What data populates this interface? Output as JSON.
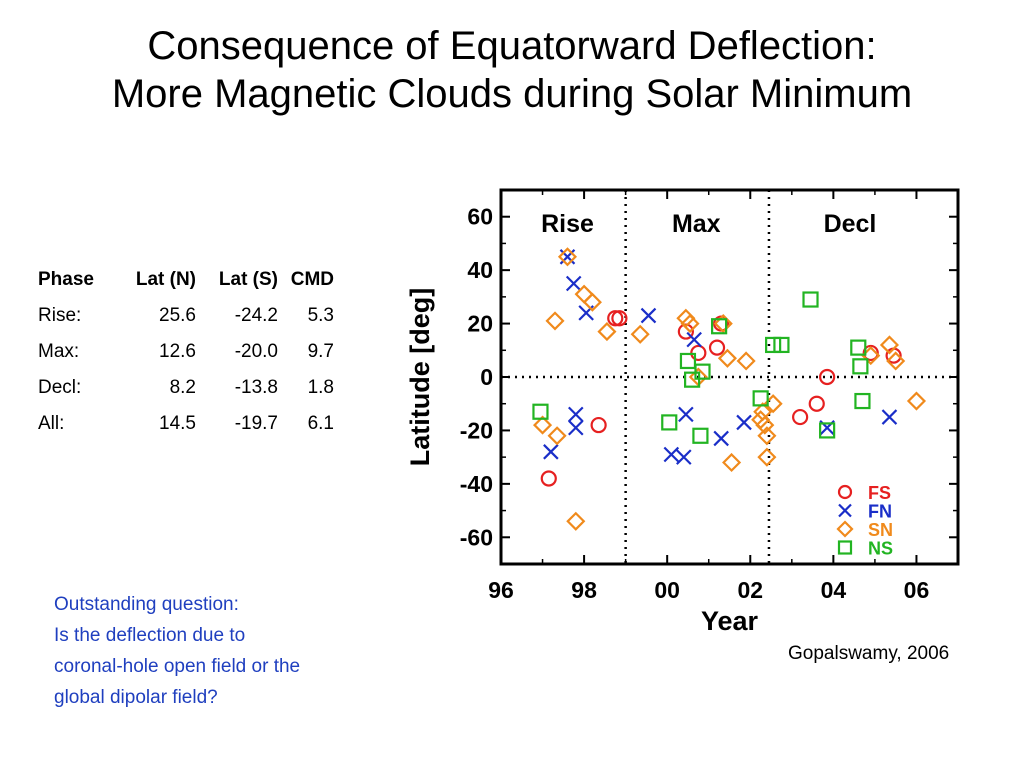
{
  "slide": {
    "title_line1": "Consequence of Equatorward Deflection:",
    "title_line2": "More Magnetic Clouds during Solar Minimum",
    "question_line1": "Outstanding question:",
    "question_line2": "Is the deflection due to",
    "question_line3": "coronal-hole open field or the",
    "question_line4": "global dipolar field?",
    "credit": "Gopalswamy, 2006"
  },
  "table": {
    "header": [
      "Phase",
      "Lat (N)",
      "Lat (S)",
      "CMD"
    ],
    "rows": [
      {
        "phase": "Rise:",
        "lat_n": "25.6",
        "lat_s": "-24.2",
        "cmd": "5.3"
      },
      {
        "phase": "Max:",
        "lat_n": "12.6",
        "lat_s": "-20.0",
        "cmd": "9.7"
      },
      {
        "phase": "Decl:",
        "lat_n": "8.2",
        "lat_s": "-13.8",
        "cmd": "1.8"
      },
      {
        "phase": "All:",
        "lat_n": "14.5",
        "lat_s": "-19.7",
        "cmd": "6.1"
      }
    ]
  },
  "chart_data": {
    "type": "scatter",
    "xlabel": "Year",
    "ylabel": "Latitude [deg]",
    "xlim": [
      1996,
      2007
    ],
    "ylim": [
      -70,
      70
    ],
    "xticks": [
      1996,
      1998,
      2000,
      2002,
      2004,
      2006
    ],
    "xtick_labels": [
      "96",
      "98",
      "00",
      "02",
      "04",
      "06"
    ],
    "yticks": [
      -60,
      -40,
      -20,
      0,
      20,
      40,
      60
    ],
    "ytick_labels": [
      "-60",
      "-40",
      "-20",
      "0",
      "20",
      "40",
      "60"
    ],
    "phase_boundaries": [
      1999.0,
      2002.45
    ],
    "phases": [
      {
        "label": "Rise",
        "x": 1997.6
      },
      {
        "label": "Max",
        "x": 2000.7
      },
      {
        "label": "Decl",
        "x": 2004.4
      }
    ],
    "legend_position": "bottom-right",
    "series": [
      {
        "name": "FS",
        "marker": "circle",
        "color": "#e62020",
        "points": [
          [
            1997.15,
            -38
          ],
          [
            1998.35,
            -18
          ],
          [
            1998.75,
            22
          ],
          [
            1998.85,
            22
          ],
          [
            2000.45,
            17
          ],
          [
            2000.75,
            9
          ],
          [
            2001.2,
            11
          ],
          [
            2001.3,
            20
          ],
          [
            2003.2,
            -15
          ],
          [
            2003.6,
            -10
          ],
          [
            2003.85,
            0
          ],
          [
            2004.9,
            9
          ],
          [
            2005.45,
            8
          ]
        ]
      },
      {
        "name": "FN",
        "marker": "x",
        "color": "#1a2ec8",
        "points": [
          [
            1997.2,
            -28
          ],
          [
            1997.6,
            45
          ],
          [
            1997.75,
            35
          ],
          [
            1997.8,
            -19
          ],
          [
            1997.8,
            -14
          ],
          [
            1998.05,
            24
          ],
          [
            1999.55,
            23
          ],
          [
            2000.1,
            -29
          ],
          [
            2000.4,
            -30
          ],
          [
            2000.45,
            -14
          ],
          [
            2000.65,
            14
          ],
          [
            2001.3,
            -23
          ],
          [
            2001.85,
            -17
          ],
          [
            2003.85,
            -19
          ],
          [
            2005.35,
            -15
          ]
        ]
      },
      {
        "name": "SN",
        "marker": "diamond",
        "color": "#f08a1c",
        "points": [
          [
            1997.0,
            -18
          ],
          [
            1997.3,
            21
          ],
          [
            1997.35,
            -22
          ],
          [
            1997.6,
            45
          ],
          [
            1997.8,
            -54
          ],
          [
            1998.0,
            31
          ],
          [
            1998.2,
            28
          ],
          [
            1998.55,
            17
          ],
          [
            1999.35,
            16
          ],
          [
            2000.45,
            22
          ],
          [
            2000.55,
            20
          ],
          [
            2000.75,
            0
          ],
          [
            2001.35,
            20
          ],
          [
            2001.45,
            7
          ],
          [
            2001.55,
            -32
          ],
          [
            2001.9,
            6
          ],
          [
            2002.25,
            -16
          ],
          [
            2002.3,
            -13
          ],
          [
            2002.35,
            -18
          ],
          [
            2002.4,
            -22
          ],
          [
            2002.4,
            -30
          ],
          [
            2002.55,
            -10
          ],
          [
            2004.9,
            8
          ],
          [
            2005.35,
            12
          ],
          [
            2005.5,
            6
          ],
          [
            2006.0,
            -9
          ]
        ]
      },
      {
        "name": "NS",
        "marker": "square",
        "color": "#22b422",
        "points": [
          [
            1996.95,
            -13
          ],
          [
            2000.05,
            -17
          ],
          [
            2000.5,
            6
          ],
          [
            2000.6,
            -1
          ],
          [
            2000.8,
            -22
          ],
          [
            2000.85,
            2
          ],
          [
            2001.25,
            19
          ],
          [
            2002.25,
            -8
          ],
          [
            2002.55,
            12
          ],
          [
            2002.75,
            12
          ],
          [
            2003.45,
            29
          ],
          [
            2003.85,
            -20
          ],
          [
            2004.6,
            11
          ],
          [
            2004.65,
            4
          ],
          [
            2004.7,
            -9
          ]
        ]
      }
    ]
  }
}
